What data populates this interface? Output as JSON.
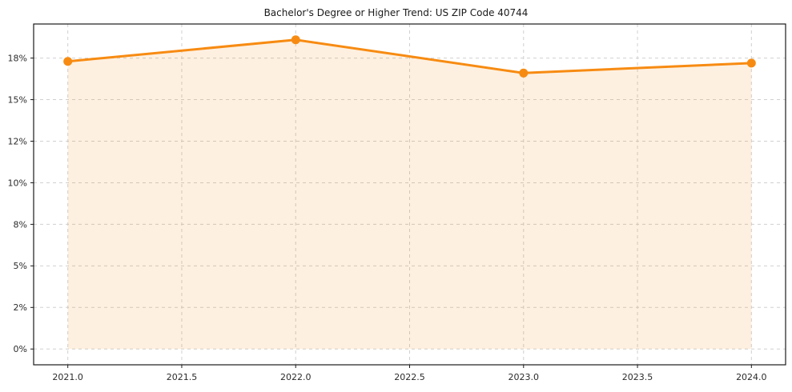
{
  "chart_data": {
    "type": "line",
    "title": "Bachelor's Degree or Higher Trend: US ZIP Code 40744",
    "xlabel": "",
    "ylabel": "",
    "x": [
      2021,
      2022,
      2023,
      2024
    ],
    "series": [
      {
        "name": "Bachelor's Degree or Higher",
        "values": [
          17.3,
          18.6,
          16.6,
          17.2
        ]
      }
    ],
    "value_unit": "%",
    "fill_to_zero": true,
    "markers": "circle",
    "grid": "dashed-both",
    "legend_position": "none",
    "xlim": [
      2020.85,
      2024.15
    ],
    "ylim": [
      -0.95,
      19.55
    ],
    "x_ticks": [
      {
        "v": 2021.0,
        "label": "2021.0"
      },
      {
        "v": 2021.5,
        "label": "2021.5"
      },
      {
        "v": 2022.0,
        "label": "2022.0"
      },
      {
        "v": 2022.5,
        "label": "2022.5"
      },
      {
        "v": 2023.0,
        "label": "2023.0"
      },
      {
        "v": 2023.5,
        "label": "2023.5"
      },
      {
        "v": 2024.0,
        "label": "2024.0"
      }
    ],
    "y_ticks": [
      {
        "v": 0,
        "label": "0%"
      },
      {
        "v": 2.5,
        "label": "2%"
      },
      {
        "v": 5,
        "label": "5%"
      },
      {
        "v": 7.5,
        "label": "8%"
      },
      {
        "v": 10,
        "label": "10%"
      },
      {
        "v": 12.5,
        "label": "12%"
      },
      {
        "v": 15,
        "label": "15%"
      },
      {
        "v": 17.5,
        "label": "18%"
      }
    ],
    "colors": {
      "line": "#f78b12",
      "fill": "#f78b12",
      "fill_opacity": 0.13,
      "grid": "#d0d0d0",
      "axis": "#1a1a1a",
      "background": "#ffffff"
    }
  }
}
